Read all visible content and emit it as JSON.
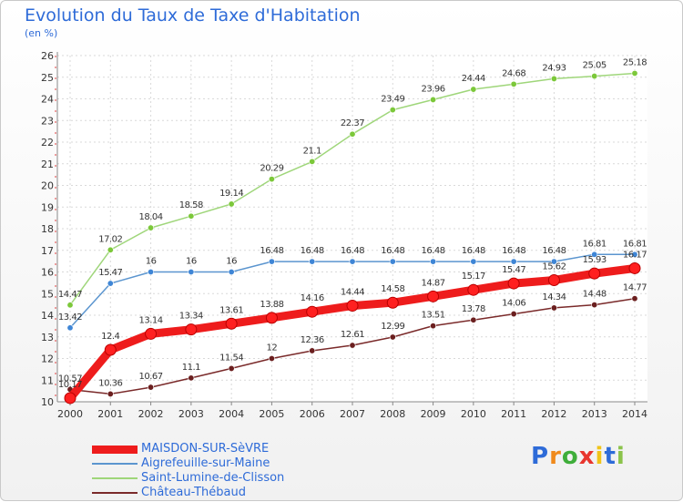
{
  "header": {
    "title": "Evolution du Taux de Taxe d'Habitation",
    "subtitle": "(en %)"
  },
  "logo": {
    "text": "Proxiti",
    "letters": [
      {
        "char": "P",
        "color": "#2e6bd8"
      },
      {
        "char": "r",
        "color": "#f08a1c"
      },
      {
        "char": "o",
        "color": "#3fae3a"
      },
      {
        "char": "x",
        "color": "#e8352e"
      },
      {
        "char": "i",
        "color": "#f0c419"
      },
      {
        "char": "t",
        "color": "#2e6bd8"
      },
      {
        "char": "i",
        "color": "#8bc34a"
      }
    ]
  },
  "chart_data": {
    "type": "line",
    "title": "Evolution du Taux de Taxe d'Habitation",
    "subtitle": "(en %)",
    "x": [
      2000,
      2001,
      2002,
      2003,
      2004,
      2005,
      2006,
      2007,
      2008,
      2009,
      2010,
      2011,
      2012,
      2013,
      2014
    ],
    "ylim": [
      10,
      26
    ],
    "yticks": [
      10,
      11,
      12,
      13,
      14,
      15,
      16,
      17,
      18,
      19,
      20,
      21,
      22,
      23,
      24,
      25,
      26
    ],
    "grid": true,
    "legend_position": "bottom-left",
    "series": [
      {
        "name": "MAISDON-SUR-SèVRE",
        "color": "#ee1c1c",
        "dot_color": "#ff2020",
        "values": [
          10.17,
          12.4,
          13.14,
          13.34,
          13.61,
          13.88,
          14.16,
          14.44,
          14.58,
          14.87,
          15.17,
          15.47,
          15.62,
          15.93,
          16.17
        ]
      },
      {
        "name": "Aigrefeuille-sur-Maine",
        "color": "#5b95cf",
        "dot_color": "#3f86d6",
        "values": [
          13.42,
          15.47,
          16,
          16,
          16,
          16.48,
          16.48,
          16.48,
          16.48,
          16.48,
          16.48,
          16.48,
          16.48,
          16.81,
          16.81
        ]
      },
      {
        "name": "Saint-Lumine-de-Clisson",
        "color": "#9fd67a",
        "dot_color": "#7cc83a",
        "values": [
          14.47,
          17.02,
          18.04,
          18.58,
          19.14,
          20.29,
          21.1,
          22.37,
          23.49,
          23.96,
          24.44,
          24.68,
          24.93,
          25.05,
          25.18
        ]
      },
      {
        "name": "Château-Thébaud",
        "color": "#7a2a2a",
        "dot_color": "#6b1f1f",
        "values": [
          10.57,
          10.36,
          10.67,
          11.1,
          11.54,
          12,
          12.36,
          12.61,
          12.99,
          13.51,
          13.78,
          14.06,
          14.34,
          14.48,
          14.77
        ]
      }
    ]
  }
}
